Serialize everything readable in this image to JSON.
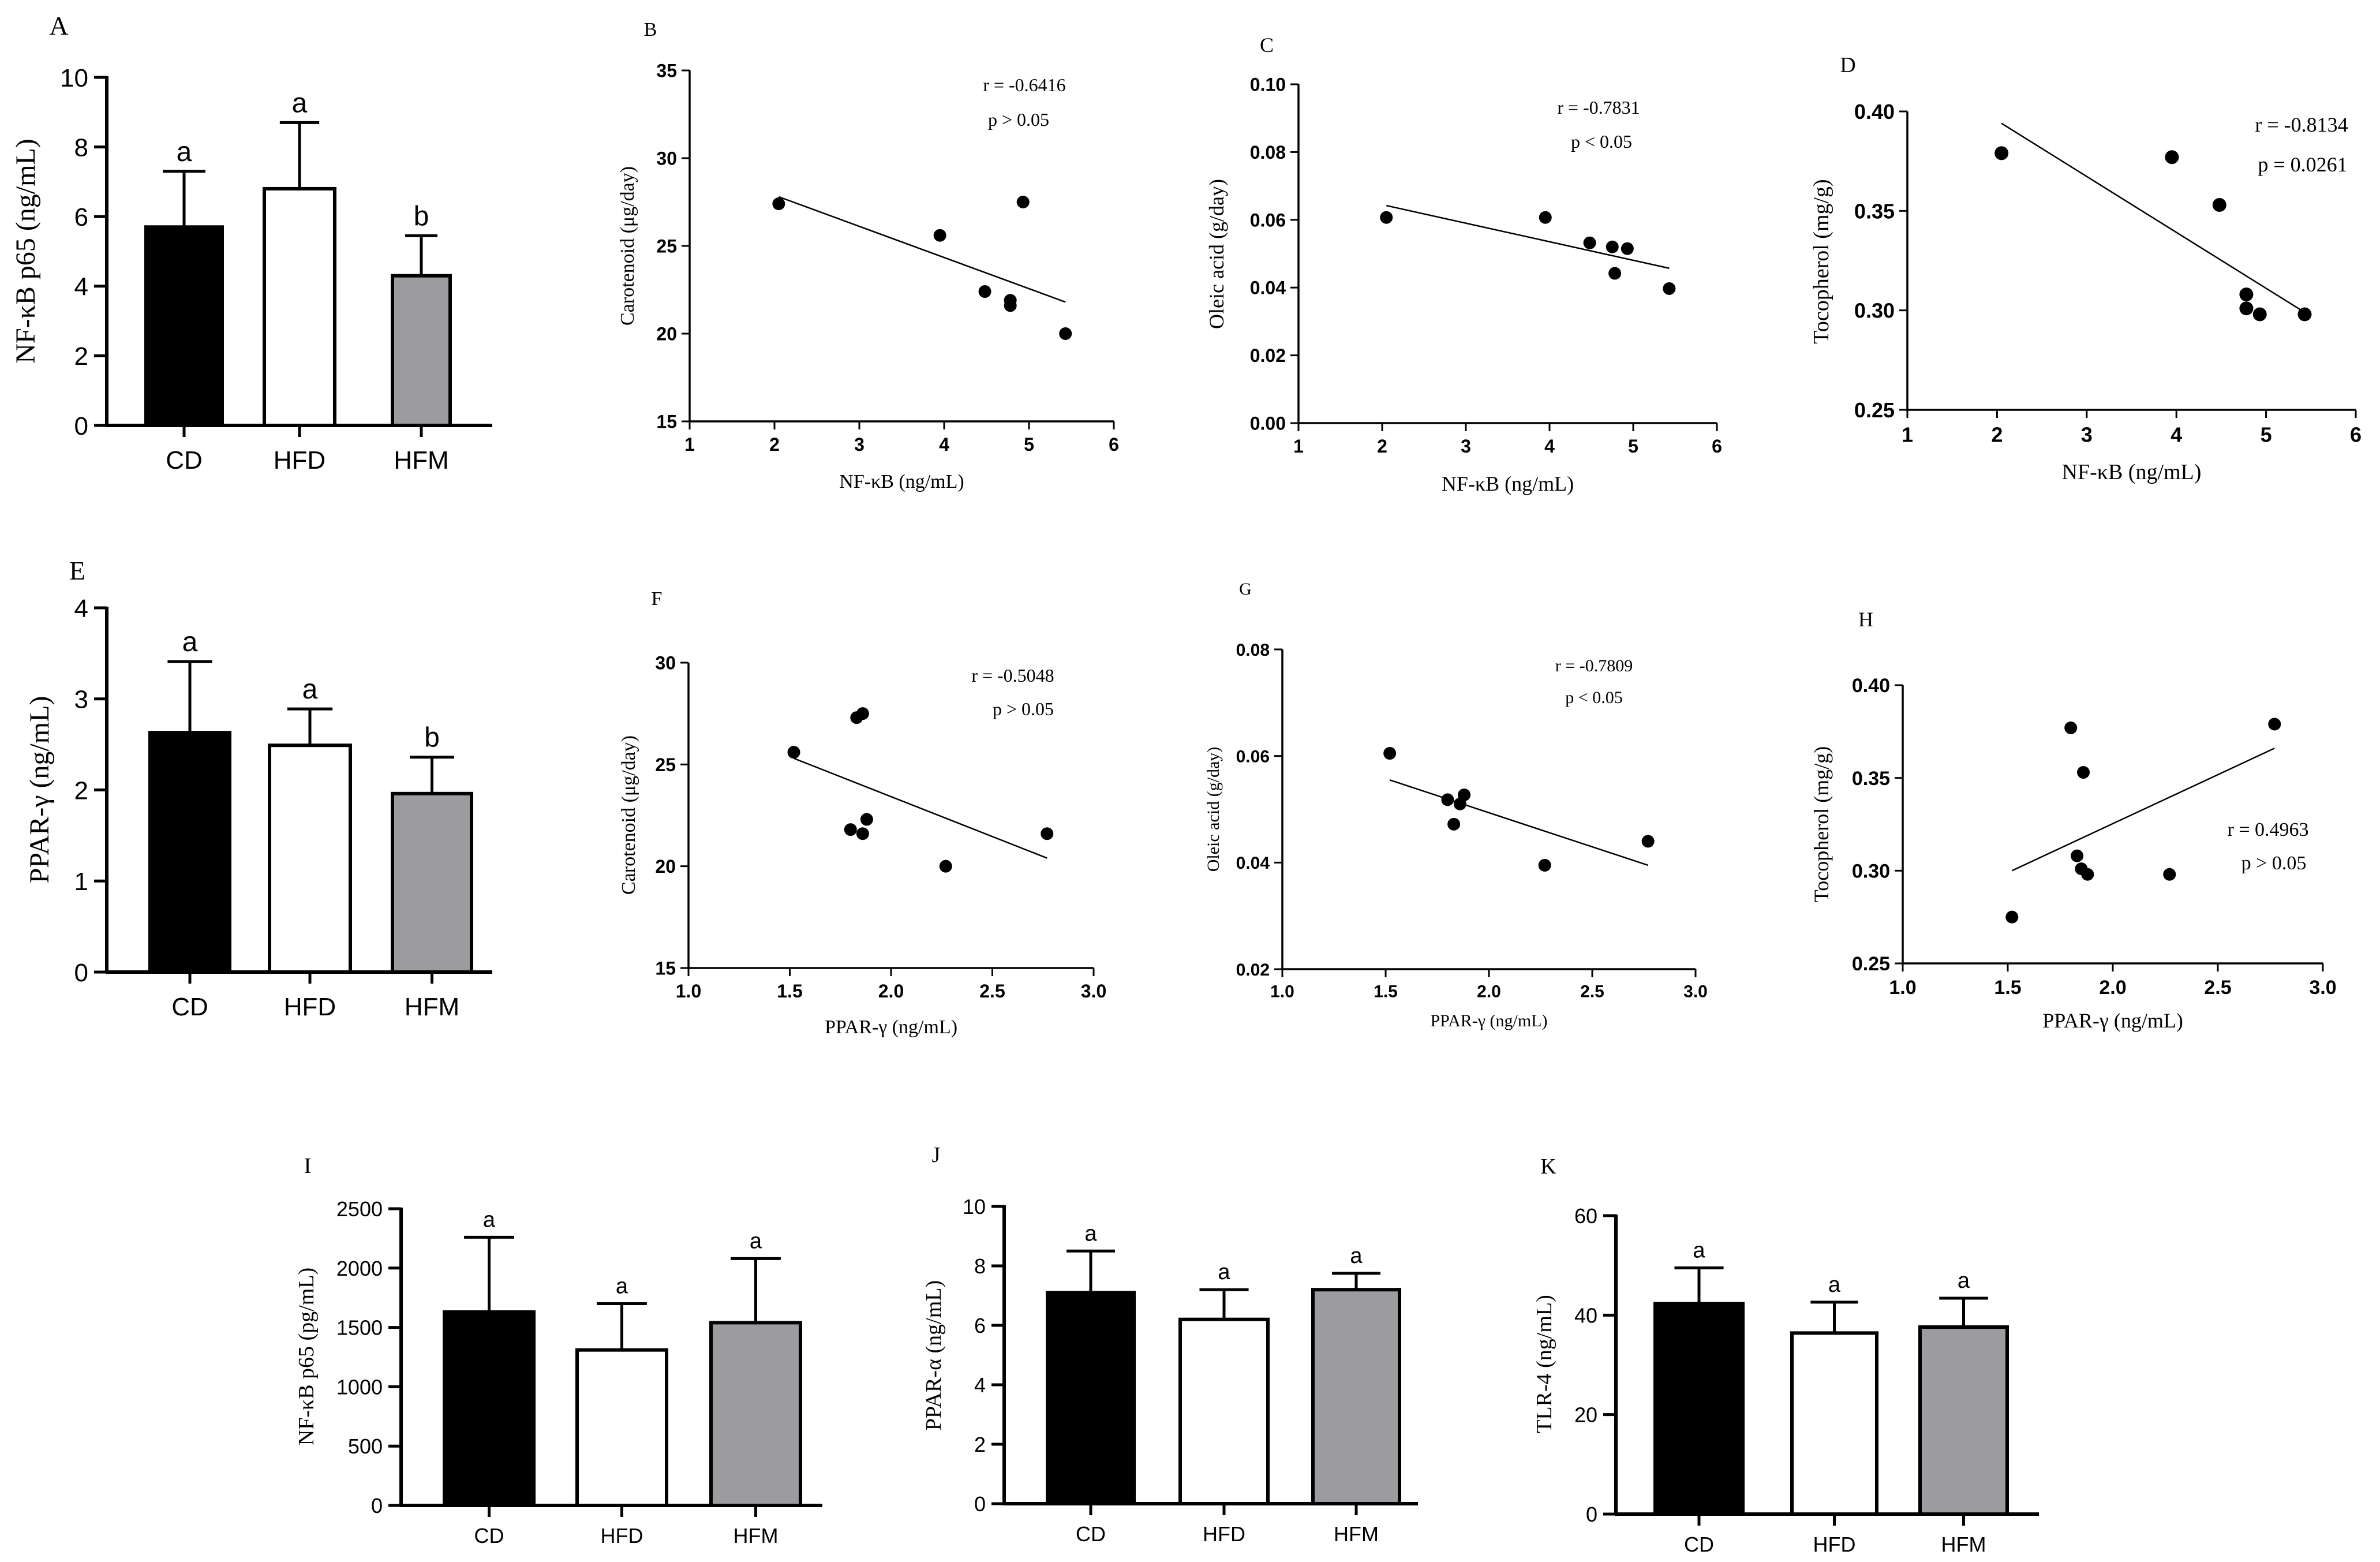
{
  "figure": {
    "colors": {
      "axis": "#000000",
      "cd_bar": "#000000",
      "hfd_bar": "#ffffff",
      "hfm_bar": "#9c9ba0",
      "point": "#000000"
    }
  },
  "chart_data": [
    {
      "id": "A",
      "panel_label": "A",
      "type": "bar",
      "categories": [
        "CD",
        "HFD",
        "HFM"
      ],
      "values": [
        5.7,
        6.8,
        4.3
      ],
      "errors": [
        1.6,
        1.9,
        1.15
      ],
      "letters": [
        "a",
        "a",
        "b"
      ],
      "ylabel": "NF-κB p65 (ng/mL)",
      "xlabel": "",
      "ylim": [
        0,
        10
      ],
      "yticks": [
        "0",
        "2",
        "4",
        "6",
        "8",
        "10"
      ],
      "ytick_values": [
        0,
        2,
        4,
        6,
        8,
        10
      ]
    },
    {
      "id": "B",
      "panel_label": "B",
      "type": "scatter",
      "points": [
        [
          2.05,
          27.4
        ],
        [
          3.95,
          25.6
        ],
        [
          4.48,
          22.4
        ],
        [
          4.78,
          21.9
        ],
        [
          4.78,
          21.6
        ],
        [
          4.93,
          27.5
        ],
        [
          5.43,
          20.0
        ]
      ],
      "fit_line": [
        [
          2.05,
          27.8
        ],
        [
          5.43,
          21.8
        ]
      ],
      "xlabel": "NF-κB (ng/mL)",
      "ylabel": "Carotenoid (μg/day)",
      "xlim": [
        1,
        6
      ],
      "ylim": [
        15,
        35
      ],
      "xticks": [
        "1",
        "2",
        "3",
        "4",
        "5",
        "6"
      ],
      "xtick_values": [
        1,
        2,
        3,
        4,
        5,
        6
      ],
      "yticks": [
        "15",
        "20",
        "25",
        "30",
        "35"
      ],
      "ytick_values": [
        15,
        20,
        25,
        30,
        35
      ],
      "annotation_r": "r = -0.6416",
      "annotation_p": "p > 0.05"
    },
    {
      "id": "C",
      "panel_label": "C",
      "type": "scatter",
      "points": [
        [
          2.05,
          0.0607
        ],
        [
          3.95,
          0.0607
        ],
        [
          4.48,
          0.0532
        ],
        [
          4.75,
          0.052
        ],
        [
          4.78,
          0.0442
        ],
        [
          4.93,
          0.0515
        ],
        [
          5.43,
          0.0397
        ]
      ],
      "fit_line": [
        [
          2.05,
          0.0642
        ],
        [
          5.43,
          0.0457
        ]
      ],
      "xlabel": "NF-κB (ng/mL)",
      "ylabel": "Oleic acid (g/day)",
      "xlim": [
        1,
        6
      ],
      "ylim": [
        0,
        0.1
      ],
      "xticks": [
        "1",
        "2",
        "3",
        "4",
        "5",
        "6"
      ],
      "xtick_values": [
        1,
        2,
        3,
        4,
        5,
        6
      ],
      "yticks": [
        "0.00",
        "0.02",
        "0.04",
        "0.06",
        "0.08",
        "0.10"
      ],
      "ytick_values": [
        0,
        0.02,
        0.04,
        0.06,
        0.08,
        0.1
      ],
      "annotation_r": "r = -0.7831",
      "annotation_p": "p < 0.05"
    },
    {
      "id": "D",
      "panel_label": "D",
      "type": "scatter",
      "points": [
        [
          2.05,
          0.379
        ],
        [
          3.95,
          0.377
        ],
        [
          4.48,
          0.353
        ],
        [
          4.78,
          0.308
        ],
        [
          4.78,
          0.301
        ],
        [
          4.93,
          0.298
        ],
        [
          5.43,
          0.298
        ]
      ],
      "fit_line": [
        [
          2.05,
          0.394
        ],
        [
          5.43,
          0.299
        ]
      ],
      "xlabel": "NF-κB (ng/mL)",
      "ylabel": "Tocopherol (mg/g)",
      "xlim": [
        1,
        6
      ],
      "ylim": [
        0.25,
        0.4
      ],
      "xticks": [
        "1",
        "2",
        "3",
        "4",
        "5",
        "6"
      ],
      "xtick_values": [
        1,
        2,
        3,
        4,
        5,
        6
      ],
      "yticks": [
        "0.25",
        "0.30",
        "0.35",
        "0.40"
      ],
      "ytick_values": [
        0.25,
        0.3,
        0.35,
        0.4
      ],
      "annotation_r": "r = -0.8134",
      "annotation_p": "p = 0.0261"
    },
    {
      "id": "E",
      "panel_label": "E",
      "type": "bar",
      "categories": [
        "CD",
        "HFD",
        "HFM"
      ],
      "values": [
        2.63,
        2.49,
        1.96
      ],
      "errors": [
        0.78,
        0.4,
        0.4
      ],
      "letters": [
        "a",
        "a",
        "b"
      ],
      "ylabel": "PPAR-γ (ng/mL)",
      "xlabel": "",
      "ylim": [
        0,
        4
      ],
      "yticks": [
        "0",
        "1",
        "2",
        "3",
        "4"
      ],
      "ytick_values": [
        0,
        1,
        2,
        3,
        4
      ]
    },
    {
      "id": "F",
      "panel_label": "F",
      "type": "scatter",
      "points": [
        [
          1.52,
          25.6
        ],
        [
          1.8,
          21.8
        ],
        [
          1.83,
          27.3
        ],
        [
          1.86,
          27.5
        ],
        [
          1.86,
          21.6
        ],
        [
          1.88,
          22.3
        ],
        [
          2.27,
          20.0
        ],
        [
          2.77,
          21.6
        ]
      ],
      "fit_line": [
        [
          1.52,
          25.3
        ],
        [
          2.77,
          20.4
        ]
      ],
      "xlabel": "PPAR-γ (ng/mL)",
      "ylabel": "Carotenoid (μg/day)",
      "xlim": [
        1.0,
        3.0
      ],
      "ylim": [
        15,
        30
      ],
      "xticks": [
        "1.0",
        "1.5",
        "2.0",
        "2.5",
        "3.0"
      ],
      "xtick_values": [
        1.0,
        1.5,
        2.0,
        2.5,
        3.0
      ],
      "yticks": [
        "15",
        "20",
        "25",
        "30"
      ],
      "ytick_values": [
        15,
        20,
        25,
        30
      ],
      "annotation_r": "r = -0.5048",
      "annotation_p": "p > 0.05"
    },
    {
      "id": "G",
      "panel_label": "G",
      "type": "scatter",
      "points": [
        [
          1.52,
          0.0605
        ],
        [
          1.8,
          0.0518
        ],
        [
          1.83,
          0.0472
        ],
        [
          1.86,
          0.051
        ],
        [
          1.88,
          0.0527
        ],
        [
          2.27,
          0.0395
        ],
        [
          2.77,
          0.044
        ]
      ],
      "fit_line": [
        [
          1.52,
          0.0555
        ],
        [
          2.77,
          0.0395
        ]
      ],
      "xlabel": "PPAR-γ (ng/mL)",
      "ylabel": "Oleic acid (g/day)",
      "xlim": [
        1.0,
        3.0
      ],
      "ylim": [
        0.02,
        0.08
      ],
      "xticks": [
        "1.0",
        "1.5",
        "2.0",
        "2.5",
        "3.0"
      ],
      "xtick_values": [
        1.0,
        1.5,
        2.0,
        2.5,
        3.0
      ],
      "yticks": [
        "0.02",
        "0.04",
        "0.06",
        "0.08"
      ],
      "ytick_values": [
        0.02,
        0.04,
        0.06,
        0.08
      ],
      "annotation_r": "r = -0.7809",
      "annotation_p": "p < 0.05"
    },
    {
      "id": "H",
      "panel_label": "H",
      "type": "scatter",
      "points": [
        [
          1.52,
          0.275
        ],
        [
          1.8,
          0.377
        ],
        [
          1.83,
          0.308
        ],
        [
          1.85,
          0.301
        ],
        [
          1.86,
          0.353
        ],
        [
          1.88,
          0.298
        ],
        [
          2.27,
          0.298
        ],
        [
          2.77,
          0.379
        ]
      ],
      "fit_line": [
        [
          1.52,
          0.3
        ],
        [
          2.77,
          0.366
        ]
      ],
      "xlabel": "PPAR-γ (ng/mL)",
      "ylabel": "Tocopherol (mg/g)",
      "xlim": [
        1.0,
        3.0
      ],
      "ylim": [
        0.25,
        0.4
      ],
      "xticks": [
        "1.0",
        "1.5",
        "2.0",
        "2.5",
        "3.0"
      ],
      "xtick_values": [
        1.0,
        1.5,
        2.0,
        2.5,
        3.0
      ],
      "yticks": [
        "0.25",
        "0.30",
        "0.35",
        "0.40"
      ],
      "ytick_values": [
        0.25,
        0.3,
        0.35,
        0.4
      ],
      "annotation_r": "r = 0.4963",
      "annotation_p": "p > 0.05"
    },
    {
      "id": "I",
      "panel_label": "I",
      "type": "bar",
      "categories": [
        "CD",
        "HFD",
        "HFM"
      ],
      "values": [
        1630,
        1310,
        1540
      ],
      "errors": [
        630,
        390,
        540
      ],
      "letters": [
        "a",
        "a",
        "a"
      ],
      "ylabel": "NF-κB p65 (pg/mL)",
      "xlabel": "",
      "ylim": [
        0,
        2500
      ],
      "yticks": [
        "0",
        "500",
        "1000",
        "1500",
        "2000",
        "2500"
      ],
      "ytick_values": [
        0,
        500,
        1000,
        1500,
        2000,
        2500
      ]
    },
    {
      "id": "J",
      "panel_label": "J",
      "type": "bar",
      "categories": [
        "CD",
        "HFD",
        "HFM"
      ],
      "values": [
        7.1,
        6.2,
        7.2
      ],
      "errors": [
        1.4,
        1.0,
        0.55
      ],
      "letters": [
        "a",
        "a",
        "a"
      ],
      "ylabel": "PPAR-α (ng/mL)",
      "xlabel": "",
      "ylim": [
        0,
        10
      ],
      "yticks": [
        "0",
        "2",
        "4",
        "6",
        "8",
        "10"
      ],
      "ytick_values": [
        0,
        2,
        4,
        6,
        8,
        10
      ]
    },
    {
      "id": "K",
      "panel_label": "K",
      "type": "bar",
      "categories": [
        "CD",
        "HFD",
        "HFM"
      ],
      "values": [
        42.3,
        36.4,
        37.6
      ],
      "errors": [
        7.2,
        6.2,
        5.8
      ],
      "letters": [
        "a",
        "a",
        "a"
      ],
      "ylabel": "TLR-4 (ng/mL)",
      "xlabel": "",
      "ylim": [
        0,
        60
      ],
      "yticks": [
        "0",
        "20",
        "40",
        "60"
      ],
      "ytick_values": [
        0,
        20,
        40,
        60
      ]
    }
  ]
}
